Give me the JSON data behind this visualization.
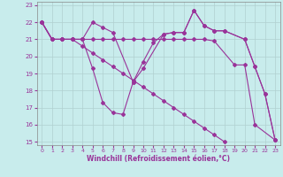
{
  "xlabel": "Windchill (Refroidissement éolien,°C)",
  "xlim": [
    -0.5,
    23.5
  ],
  "ylim": [
    14.8,
    23.2
  ],
  "yticks": [
    15,
    16,
    17,
    18,
    19,
    20,
    21,
    22,
    23
  ],
  "xticks": [
    0,
    1,
    2,
    3,
    4,
    5,
    6,
    7,
    8,
    9,
    10,
    11,
    12,
    13,
    14,
    15,
    16,
    17,
    18,
    19,
    20,
    21,
    22,
    23
  ],
  "bg_color": "#c8ecec",
  "grid_color": "#b0d0d0",
  "line_color": "#993399",
  "lines": [
    [
      22.0,
      21.0,
      21.0,
      21.0,
      21.0,
      22.0,
      21.7,
      21.4,
      18.5,
      19.3,
      21.3,
      21.4,
      21.4,
      22.7,
      21.8,
      21.5,
      21.5,
      21.0,
      19.4,
      17.8,
      15.1
    ],
    [
      22.0,
      21.0,
      21.0,
      21.0,
      21.0,
      19.3,
      17.3,
      16.7,
      16.6,
      18.5,
      19.7,
      20.8,
      21.3,
      21.4,
      21.4,
      22.7,
      21.8,
      21.5,
      21.5,
      21.0,
      19.4,
      17.8,
      15.1
    ],
    [
      22.0,
      21.0,
      21.0,
      21.0,
      20.6,
      20.2,
      19.8,
      19.4,
      19.0,
      18.6,
      18.2,
      17.8,
      17.4,
      17.0,
      16.6,
      16.2,
      15.8,
      15.4,
      15.0
    ],
    [
      22.0,
      21.0,
      21.0,
      21.0,
      21.0,
      21.0,
      21.0,
      21.0,
      21.0,
      21.0,
      21.0,
      21.0,
      21.0,
      21.0,
      21.0,
      21.0,
      21.0,
      20.9,
      19.5,
      19.5,
      16.0,
      15.1
    ]
  ],
  "line_x": [
    [
      0,
      1,
      2,
      3,
      4,
      5,
      6,
      7,
      9,
      10,
      12,
      13,
      14,
      15,
      16,
      17,
      18,
      20,
      21,
      22,
      23
    ],
    [
      0,
      1,
      2,
      3,
      4,
      5,
      6,
      7,
      8,
      9,
      10,
      11,
      12,
      13,
      14,
      15,
      16,
      17,
      18,
      20,
      21,
      22,
      23
    ],
    [
      0,
      1,
      2,
      3,
      4,
      5,
      6,
      7,
      8,
      9,
      10,
      11,
      12,
      13,
      14,
      15,
      16,
      17,
      18
    ],
    [
      0,
      1,
      2,
      3,
      4,
      5,
      6,
      7,
      8,
      9,
      10,
      11,
      12,
      13,
      14,
      15,
      16,
      17,
      19,
      20,
      21,
      23
    ]
  ]
}
